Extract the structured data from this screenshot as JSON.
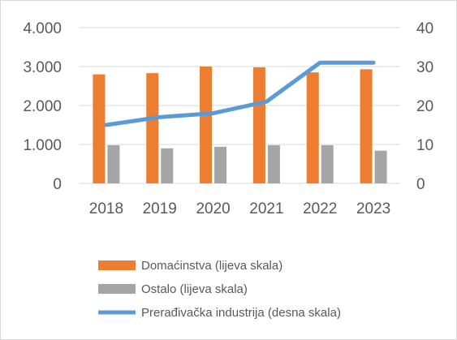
{
  "chart_data": {
    "type": "bar",
    "categories": [
      "2018",
      "2019",
      "2020",
      "2021",
      "2022",
      "2023"
    ],
    "series": [
      {
        "name": "Domaćinstva (lijeva skala)",
        "kind": "bar",
        "axis": "left",
        "color": "#ed7d31",
        "values": [
          2800,
          2830,
          3000,
          2980,
          2850,
          2930
        ]
      },
      {
        "name": "Ostalo (lijeva skala)",
        "kind": "bar",
        "axis": "left",
        "color": "#a5a5a5",
        "values": [
          980,
          900,
          940,
          980,
          980,
          840
        ]
      },
      {
        "name": "Prerađivačka industrija (desna skala)",
        "kind": "line",
        "axis": "right",
        "color": "#5b9bd5",
        "values": [
          15,
          17,
          18,
          21,
          31,
          31
        ]
      }
    ],
    "y_left": {
      "ylim": [
        0,
        4000
      ],
      "ticks": [
        0,
        1000,
        2000,
        3000,
        4000
      ],
      "tick_labels": [
        "0",
        "1.000",
        "2.000",
        "3.000",
        "4.000"
      ]
    },
    "y_right": {
      "ylim": [
        0,
        40
      ],
      "ticks": [
        0,
        10,
        20,
        30,
        40
      ],
      "tick_labels": [
        "0",
        "10",
        "20",
        "30",
        "40"
      ]
    },
    "grid": true,
    "legend_position": "bottom",
    "title": "",
    "xlabel": "",
    "ylabel": ""
  }
}
